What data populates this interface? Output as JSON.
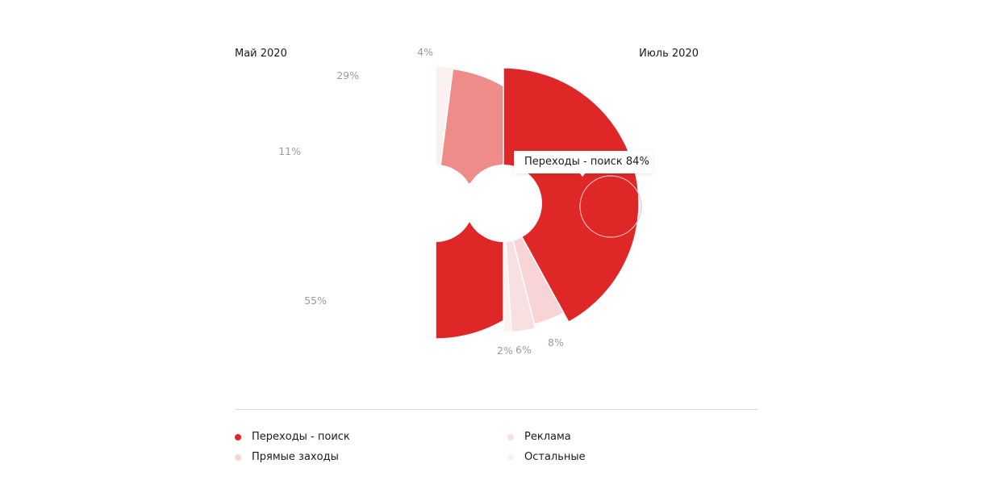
{
  "chart_data": [
    {
      "type": "pie",
      "title": "Май 2020",
      "half": "left",
      "categories": [
        "Переходы - поиск",
        "Прямые заходы",
        "Реклама",
        "Остальные"
      ],
      "values": [
        55,
        11,
        29,
        4
      ],
      "labels": [
        "55%",
        "11%",
        "29%",
        "4%"
      ]
    },
    {
      "type": "pie",
      "title": "Июль 2020",
      "half": "right",
      "categories": [
        "Переходы - поиск",
        "Прямые заходы",
        "Реклама",
        "Остальные"
      ],
      "values": [
        84,
        8,
        6,
        2
      ],
      "labels": [
        "84%",
        "8%",
        "6%",
        "2%"
      ]
    }
  ],
  "legend": [
    {
      "label": "Переходы - поиск",
      "color": "#df2727"
    },
    {
      "label": "Прямые заходы",
      "color": "#f8d4d6"
    },
    {
      "label": "Реклама",
      "color": "#f8dfe0"
    },
    {
      "label": "Остальные",
      "color": "#fcf1f1"
    }
  ],
  "tooltip": {
    "text": "Переходы - поиск 84%"
  },
  "colors": {
    "search": "#df2727",
    "direct": "#f8d4d6",
    "ads_may": "#ee8c8a",
    "ads_july": "#f8dfe0",
    "other": "#fcf1f1",
    "label_grey": "#9a9a9a"
  }
}
